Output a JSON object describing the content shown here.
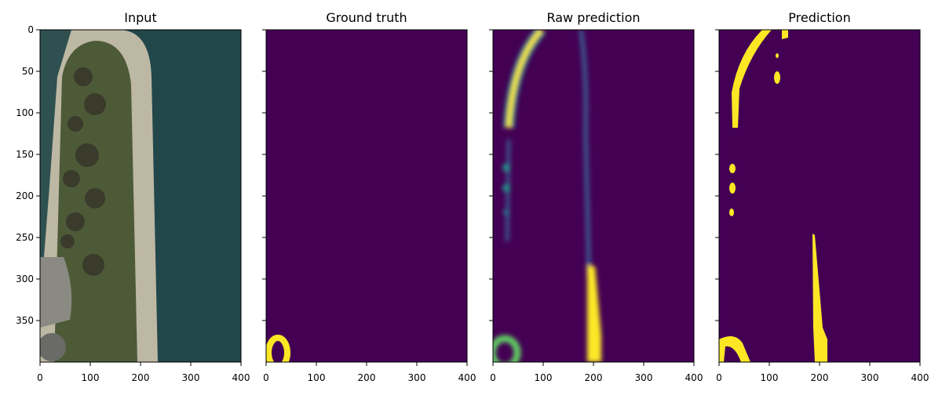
{
  "chart_data": [
    {
      "type": "image",
      "title": "Input",
      "xlim": [
        0,
        400
      ],
      "ylim": [
        400,
        0
      ],
      "xticks": [
        0,
        100,
        200,
        300,
        400
      ],
      "yticks": [
        0,
        50,
        100,
        150,
        200,
        250,
        300,
        350
      ]
    },
    {
      "type": "image",
      "title": "Ground truth",
      "xlim": [
        0,
        400
      ],
      "xticks": [
        0,
        100,
        200,
        300,
        400
      ]
    },
    {
      "type": "image",
      "title": "Raw prediction",
      "xlim": [
        0,
        400
      ],
      "xticks": [
        0,
        100,
        200,
        300,
        400
      ]
    },
    {
      "type": "image",
      "title": "Prediction",
      "xlim": [
        0,
        400
      ],
      "xticks": [
        0,
        100,
        200,
        300,
        400
      ]
    }
  ]
}
